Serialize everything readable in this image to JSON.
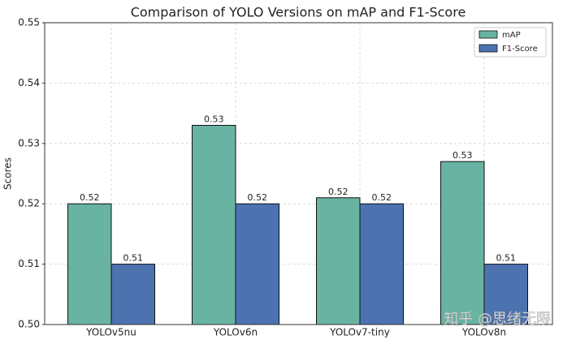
{
  "chart_data": {
    "type": "bar",
    "title": "Comparison of YOLO Versions on mAP and F1-Score",
    "y_label": "Scores",
    "categories": [
      "YOLOv5nu",
      "YOLOv6n",
      "YOLOv7-tiny",
      "YOLOv8n"
    ],
    "series": [
      {
        "name": "mAP",
        "color": "#69b3a2",
        "values": [
          0.52,
          0.533,
          0.521,
          0.527
        ],
        "value_labels": [
          "0.52",
          "0.53",
          "0.52",
          "0.53"
        ]
      },
      {
        "name": "F1-Score",
        "color": "#4c72b0",
        "values": [
          0.51,
          0.52,
          0.52,
          0.51
        ],
        "value_labels": [
          "0.51",
          "0.52",
          "0.52",
          "0.51"
        ]
      }
    ],
    "ylim": [
      0.5,
      0.55
    ],
    "yticks": [
      {
        "value": 0.5,
        "label": "0.50"
      },
      0.51,
      0.52,
      0.53,
      0.54,
      0.55
    ],
    "grid": true,
    "legend": "upper right",
    "watermark": "知乎 @思绪无限"
  }
}
